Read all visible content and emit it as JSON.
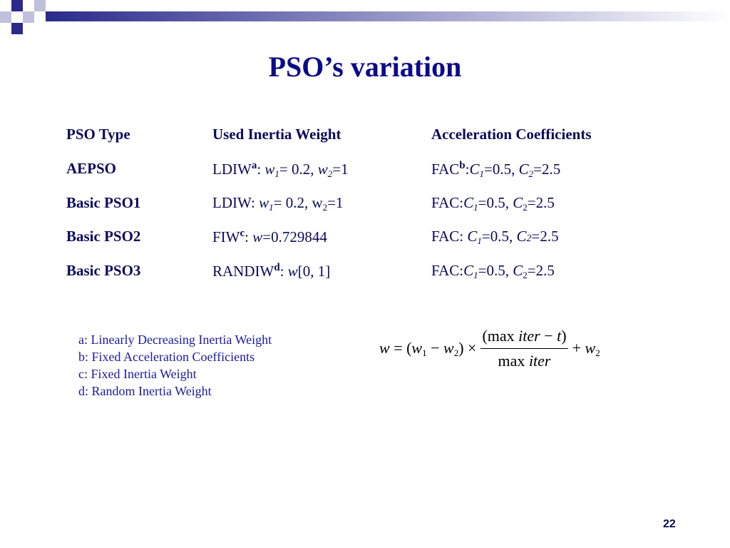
{
  "title": "PSO’s variation",
  "table": {
    "header": [
      "PSO Type",
      "Used Inertia Weight",
      "Acceleration Coefficients"
    ],
    "rows": [
      [
        "AEPSO",
        [
          {
            "text": "LDIW"
          },
          {
            "text": "a",
            "style": "sup"
          },
          {
            "text": ": "
          },
          {
            "text": "w",
            "style": "i"
          },
          {
            "text": "1",
            "style": "isub"
          },
          {
            "text": "= 0.2, "
          },
          {
            "text": "w",
            "style": "i"
          },
          {
            "text": "2",
            "style": "isub"
          },
          {
            "text": "=1"
          }
        ],
        [
          {
            "text": "FAC"
          },
          {
            "text": "b",
            "style": "sup"
          },
          {
            "text": ":"
          },
          {
            "text": "C",
            "style": "i"
          },
          {
            "text": "1",
            "style": "isub"
          },
          {
            "text": "=0.5, "
          },
          {
            "text": "C",
            "style": "i"
          },
          {
            "text": "2",
            "style": "isub"
          },
          {
            "text": "=2.5"
          }
        ]
      ],
      [
        "Basic PSO1",
        [
          {
            "text": "LDIW: "
          },
          {
            "text": "w",
            "style": "i"
          },
          {
            "text": "1",
            "style": "isub"
          },
          {
            "text": "= 0.2, w"
          },
          {
            "text": "2",
            "style": "sub"
          },
          {
            "text": "=1"
          }
        ],
        [
          {
            "text": "FAC:"
          },
          {
            "text": "C",
            "style": "i"
          },
          {
            "text": "1",
            "style": "isub"
          },
          {
            "text": "=0.5, "
          },
          {
            "text": "C",
            "style": "i"
          },
          {
            "text": "2",
            "style": "sub"
          },
          {
            "text": "=2.5"
          }
        ]
      ],
      [
        "Basic PSO2",
        [
          {
            "text": "FIW"
          },
          {
            "text": "c",
            "style": "sup"
          },
          {
            "text": ": "
          },
          {
            "text": "w",
            "style": "i"
          },
          {
            "text": "=0.729844"
          }
        ],
        [
          {
            "text": "FAC: "
          },
          {
            "text": "C",
            "style": "i"
          },
          {
            "text": "1",
            "style": "isub"
          },
          {
            "text": "=0.5, "
          },
          {
            "text": "C",
            "style": "i"
          },
          {
            "text": "2",
            "style": "ismall"
          },
          {
            "text": "=2.5"
          }
        ]
      ],
      [
        "Basic PSO3",
        [
          {
            "text": "RANDIW"
          },
          {
            "text": "d",
            "style": "sup"
          },
          {
            "text": ": "
          },
          {
            "text": "w",
            "style": "i"
          },
          {
            "text": "[0, 1]"
          }
        ],
        [
          {
            "text": "FAC:"
          },
          {
            "text": "C",
            "style": "i"
          },
          {
            "text": "1",
            "style": "isub"
          },
          {
            "text": "=0.5, "
          },
          {
            "text": "C",
            "style": "i"
          },
          {
            "text": "2",
            "style": "sub"
          },
          {
            "text": "=2.5"
          }
        ]
      ]
    ]
  },
  "footnotes": [
    "a: Linearly Decreasing Inertia Weight",
    "b: Fixed Acceleration Coefficients",
    "c: Fixed Inertia Weight",
    "d: Random Inertia Weight"
  ],
  "formula": {
    "lhs": [
      {
        "text": "w",
        "style": "i"
      },
      {
        "text": " = ("
      },
      {
        "text": "w",
        "style": "i"
      },
      {
        "text": "1",
        "style": "sub"
      },
      {
        "text": " − "
      },
      {
        "text": "w",
        "style": "i"
      },
      {
        "text": "2",
        "style": "sub"
      },
      {
        "text": ") × "
      }
    ],
    "numerator": [
      {
        "text": "(max "
      },
      {
        "text": "iter",
        "style": "i"
      },
      {
        "text": " − "
      },
      {
        "text": "t",
        "style": "i"
      },
      {
        "text": ")"
      }
    ],
    "denominator": [
      {
        "text": "max "
      },
      {
        "text": "iter",
        "style": "i"
      }
    ],
    "rhs": [
      {
        "text": " + "
      },
      {
        "text": "w",
        "style": "i"
      },
      {
        "text": "2",
        "style": "sub"
      }
    ]
  },
  "page_number": "22"
}
